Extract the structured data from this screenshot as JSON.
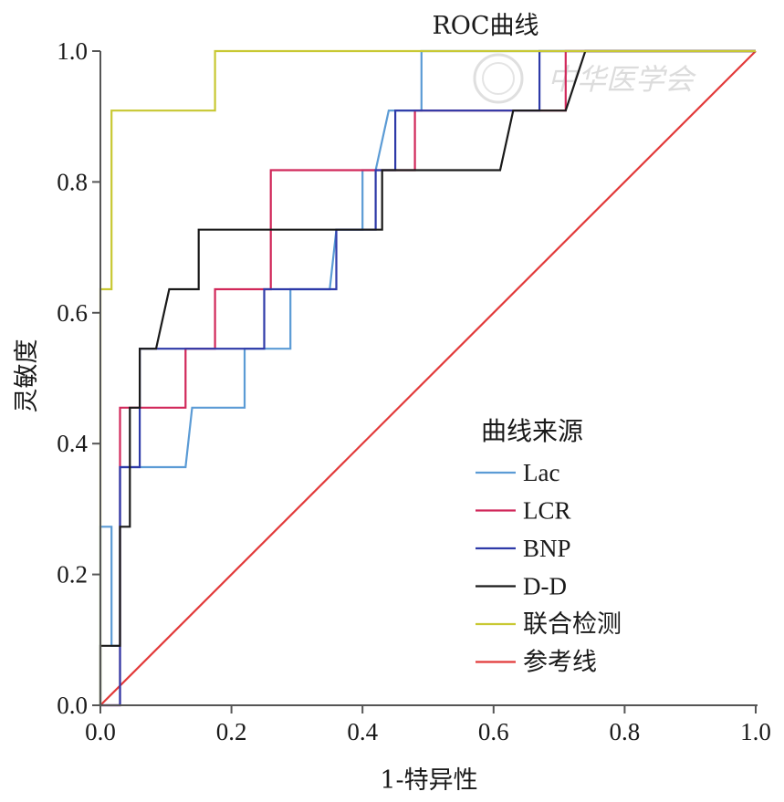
{
  "chart_data": {
    "type": "line",
    "title": "ROC曲线",
    "xlabel": "1-特异性",
    "ylabel": "灵敏度",
    "xlim": [
      0,
      1
    ],
    "ylim": [
      0,
      1
    ],
    "xticks": [
      "0.0",
      "0.2",
      "0.4",
      "0.6",
      "0.8",
      "1.0"
    ],
    "yticks": [
      "0.0",
      "0.2",
      "0.4",
      "0.6",
      "0.8",
      "1.0"
    ],
    "legend_title": "曲线来源",
    "legend_position": "lower-right",
    "watermark": "中华医学会",
    "series": [
      {
        "name": "Lac",
        "color": "#5b9bd5",
        "x": [
          0,
          0,
          0.017,
          0.017,
          0.03,
          0.03,
          0.06,
          0.06,
          0.13,
          0.14,
          0.22,
          0.22,
          0.29,
          0.29,
          0.35,
          0.36,
          0.4,
          0.4,
          0.41,
          0.41,
          0.42,
          0.44,
          0.49,
          0.49,
          1.0
        ],
        "y": [
          0,
          0.273,
          0.273,
          0.091,
          0.091,
          0.364,
          0.364,
          0.364,
          0.364,
          0.455,
          0.455,
          0.545,
          0.545,
          0.636,
          0.636,
          0.727,
          0.727,
          0.818,
          0.818,
          0.818,
          0.818,
          0.909,
          0.909,
          1.0,
          1.0
        ]
      },
      {
        "name": "LCR",
        "color": "#d1285a",
        "x": [
          0,
          0.03,
          0.03,
          0.13,
          0.13,
          0.175,
          0.175,
          0.26,
          0.26,
          0.45,
          0.45,
          0.48,
          0.48,
          0.71,
          0.71,
          1.0
        ],
        "y": [
          0,
          0,
          0.455,
          0.455,
          0.545,
          0.545,
          0.636,
          0.636,
          0.818,
          0.818,
          0.818,
          0.818,
          0.909,
          0.909,
          1.0,
          1.0
        ]
      },
      {
        "name": "BNP",
        "color": "#2e3aa8",
        "x": [
          0,
          0.03,
          0.03,
          0.06,
          0.06,
          0.25,
          0.25,
          0.36,
          0.36,
          0.42,
          0.42,
          0.45,
          0.45,
          0.67,
          0.67,
          1.0
        ],
        "y": [
          0,
          0,
          0.364,
          0.364,
          0.545,
          0.545,
          0.636,
          0.636,
          0.727,
          0.727,
          0.818,
          0.818,
          0.909,
          0.909,
          1.0,
          1.0
        ]
      },
      {
        "name": "D-D",
        "color": "#1a1a1a",
        "x": [
          0,
          0,
          0.03,
          0.03,
          0.045,
          0.045,
          0.06,
          0.06,
          0.085,
          0.105,
          0.15,
          0.15,
          0.43,
          0.43,
          0.61,
          0.63,
          0.71,
          0.74,
          1.0
        ],
        "y": [
          0,
          0.091,
          0.091,
          0.273,
          0.273,
          0.455,
          0.455,
          0.545,
          0.545,
          0.636,
          0.636,
          0.727,
          0.727,
          0.818,
          0.818,
          0.909,
          0.909,
          1.0,
          1.0
        ]
      },
      {
        "name": "联合检测",
        "color": "#c8c832",
        "x": [
          0,
          0,
          0.017,
          0.017,
          0.175,
          0.175,
          1.0
        ],
        "y": [
          0,
          0.636,
          0.636,
          0.909,
          0.909,
          1.0,
          1.0
        ]
      },
      {
        "name": "参考线",
        "color": "#e23a3a",
        "x": [
          0,
          1.0
        ],
        "y": [
          0,
          1.0
        ]
      }
    ]
  }
}
